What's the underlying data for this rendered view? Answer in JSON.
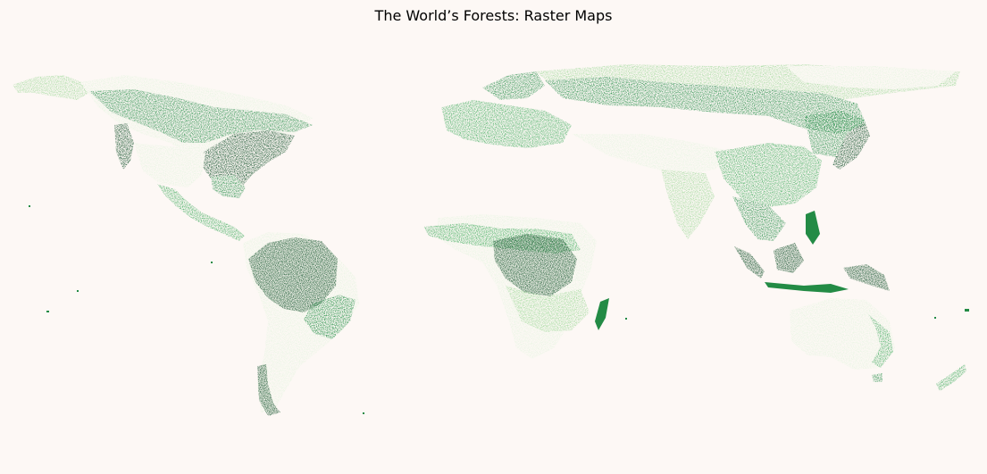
{
  "title": "The World’s Forests: Raster Maps",
  "colors": {
    "background": "#fdf8f5",
    "forest_sparse": "#e5f5e0",
    "forest_light": "#a1d99b",
    "forest_medium": "#41ab5d",
    "forest_dense": "#238b45",
    "forest_very_dense": "#00441b"
  },
  "map": {
    "type": "raster",
    "colormap": "Greens",
    "regions": [
      "North America",
      "Central America",
      "South America",
      "Europe",
      "Russia",
      "Africa",
      "Asia",
      "Southeast Asia",
      "Australia",
      "New Zealand"
    ]
  }
}
